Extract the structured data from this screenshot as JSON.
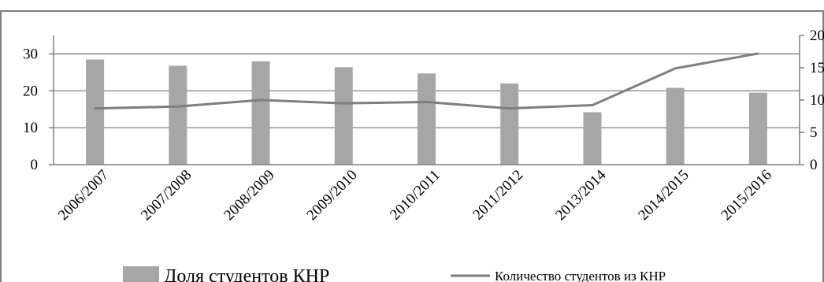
{
  "chart_data": {
    "type": "bar",
    "categories": [
      "2006/2007",
      "2007/2008",
      "2008/2009",
      "2009/2010",
      "2010/2011",
      "2011/2012",
      "2013/2014",
      "2014/2015",
      "2015/2016"
    ],
    "series": [
      {
        "name": "Доля студентов КНР",
        "kind": "bar",
        "axis": "left",
        "values": [
          28.5,
          26.8,
          28.0,
          26.4,
          24.7,
          22.0,
          14.2,
          20.8,
          19.5
        ]
      },
      {
        "name": "Количество студентов из КНР",
        "kind": "line",
        "axis": "right",
        "values": [
          8.7,
          9.0,
          10.0,
          9.5,
          9.7,
          8.7,
          9.2,
          14.9,
          17.2
        ]
      }
    ],
    "y_left": {
      "ticks": [
        "0",
        "10",
        "20",
        "30"
      ],
      "ylim": [
        0,
        35
      ]
    },
    "y_right": {
      "ticks": [
        "0",
        "5",
        "10",
        "15",
        "20"
      ],
      "ylim": [
        0,
        20
      ]
    },
    "grid": true,
    "legend": "bottom",
    "colors": {
      "bar": "#a6a6a6",
      "line": "#7f7f7f",
      "grid": "#808080",
      "axis": "#7f7f7f"
    }
  }
}
